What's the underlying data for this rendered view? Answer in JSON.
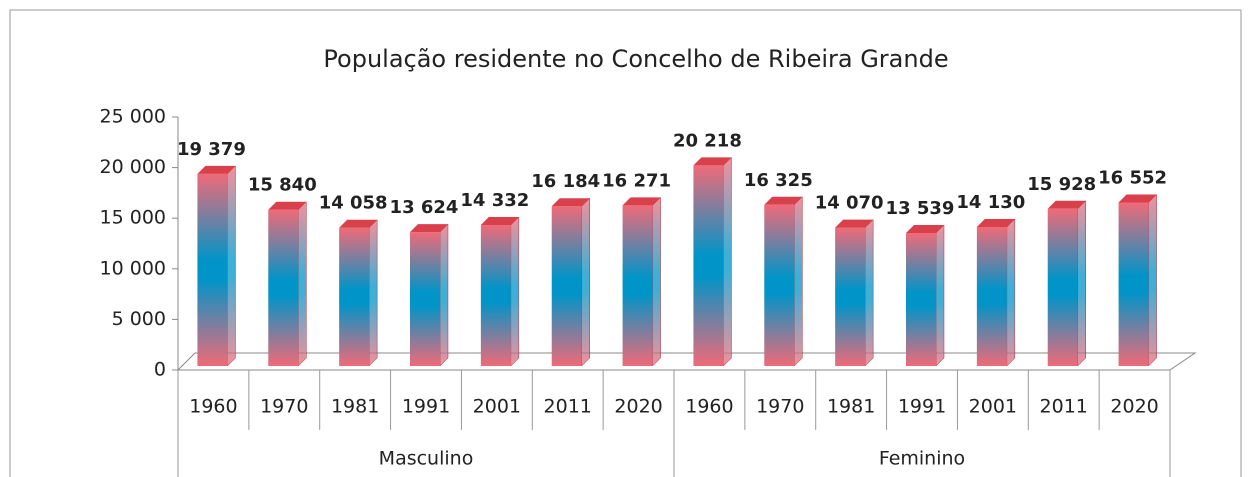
{
  "chart_data": {
    "type": "bar",
    "title": "População residente no Concelho de Ribeira Grande",
    "groups": [
      {
        "name": "Masculino",
        "categories": [
          "1960",
          "1970",
          "1981",
          "1991",
          "2001",
          "2011",
          "2020"
        ],
        "values": [
          19379,
          15840,
          14058,
          13624,
          14332,
          16184,
          16271
        ],
        "value_labels": [
          "19 379",
          "15 840",
          "14 058",
          "13 624",
          "14 332",
          "16 184",
          "16 271"
        ]
      },
      {
        "name": "Feminino",
        "categories": [
          "1960",
          "1970",
          "1981",
          "1991",
          "2001",
          "2011",
          "2020"
        ],
        "values": [
          20218,
          16325,
          14070,
          13539,
          14130,
          15928,
          16552
        ],
        "value_labels": [
          "20 218",
          "16 325",
          "14 070",
          "13 539",
          "14 130",
          "15 928",
          "16 552"
        ]
      }
    ],
    "colors": [
      "#f06a78",
      "#0094c8"
    ],
    "ylim": [
      0,
      25000
    ],
    "yticks": [
      0,
      {
        "value": 5000,
        "label": "5 000"
      },
      {
        "value": 10000,
        "label": "10 000"
      },
      {
        "value": 15000,
        "label": "15 000"
      },
      {
        "value": 20000,
        "label": "20 000"
      },
      {
        "value": 25000,
        "label": "25 000"
      }
    ],
    "grid": false
  }
}
